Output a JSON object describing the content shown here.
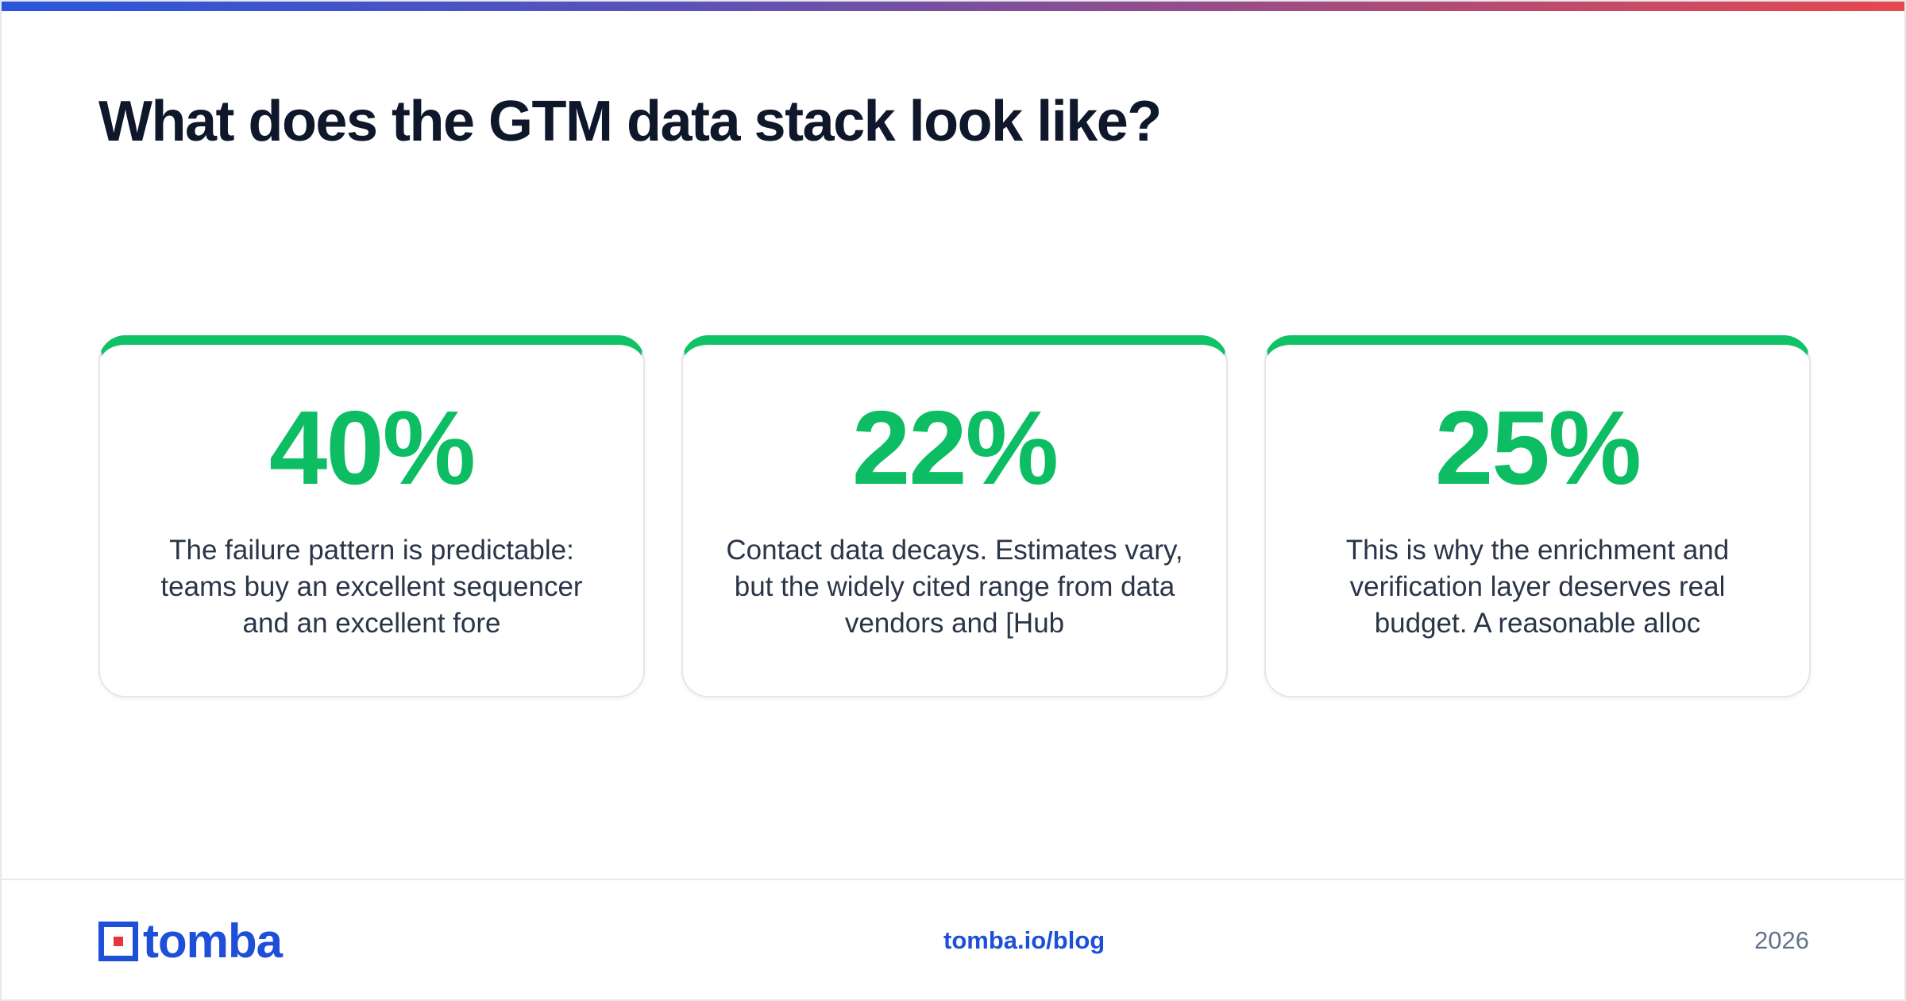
{
  "header": {
    "title": "What does the GTM data stack look like?"
  },
  "cards": [
    {
      "value": "40%",
      "text": "The failure pattern is predictable: teams buy an excellent sequencer and an excellent fore"
    },
    {
      "value": "22%",
      "text": "Contact data decays. Estimates vary, but the widely cited range from data vendors and [Hub"
    },
    {
      "value": "25%",
      "text": "This is why the enrichment and verification layer deserves real budget. A reasonable alloc"
    }
  ],
  "footer": {
    "brand": "tomba",
    "link": "tomba.io/blog",
    "year": "2026"
  },
  "colors": {
    "accent_green": "#0dbd63",
    "brand_blue": "#1d4fd8",
    "brand_red": "#e8343c",
    "title": "#0f172a"
  }
}
